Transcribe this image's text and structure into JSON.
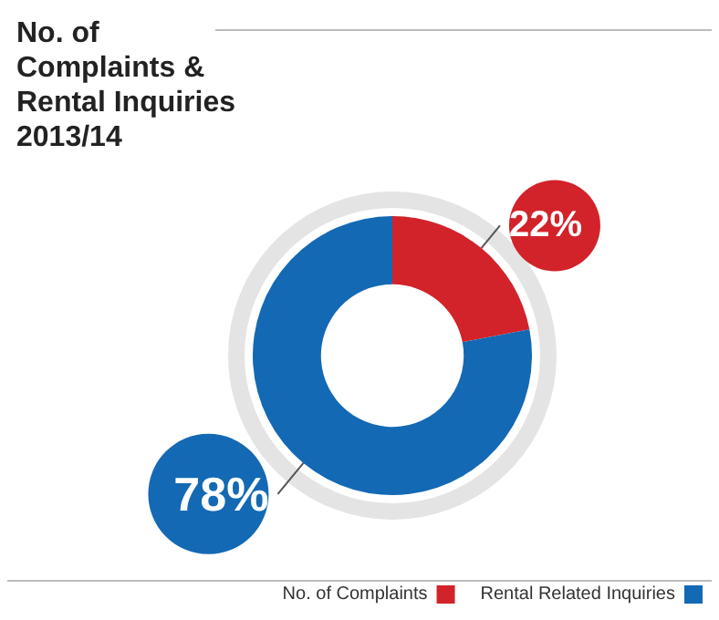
{
  "chart_data": {
    "type": "donut",
    "title": "No. of\nComplaints &\nRental Inquiries\n2013/14",
    "categories": [
      "No. of Complaints",
      "Rental Related Inquiries"
    ],
    "values": [
      22,
      78
    ],
    "colors": [
      "#d2232a",
      "#1369b4"
    ],
    "value_labels": [
      "22%",
      "78%"
    ],
    "legend": "bottom right"
  }
}
